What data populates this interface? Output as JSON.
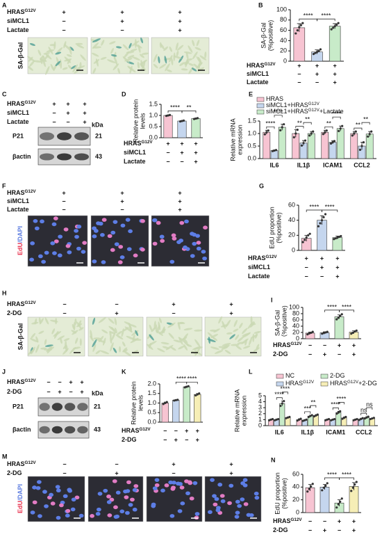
{
  "panels": {
    "A": {
      "letter": "A",
      "treatments": [
        {
          "label": "HRAS",
          "sup": "G12V",
          "marks": [
            "+",
            "+",
            "+"
          ]
        },
        {
          "label": "siMCL1",
          "marks": [
            "−",
            "+",
            "+"
          ]
        },
        {
          "label": "Lactate",
          "marks": [
            "−",
            "−",
            "+"
          ]
        }
      ],
      "image_label": "SA-β-Gal"
    },
    "C": {
      "letter": "C",
      "treatments": [
        {
          "label": "HRAS",
          "sup": "G12V",
          "marks": [
            "+",
            "+",
            "+"
          ]
        },
        {
          "label": "siMCL1",
          "marks": [
            "−",
            "+",
            "+"
          ]
        },
        {
          "label": "Lactate",
          "marks": [
            "−",
            "−",
            "+"
          ]
        }
      ],
      "unit": "kDa",
      "bands": [
        {
          "label": "P21",
          "size": 21
        },
        {
          "label": "βactin",
          "size": 43
        }
      ]
    },
    "F": {
      "letter": "F",
      "treatments": [
        {
          "label": "HRAS",
          "sup": "G12V",
          "marks": [
            "+",
            "+",
            "+"
          ]
        },
        {
          "label": "siMCL1",
          "marks": [
            "−",
            "+",
            "+"
          ]
        },
        {
          "label": "Lactate",
          "marks": [
            "−",
            "−",
            "+"
          ]
        }
      ],
      "image_label": [
        {
          "text": "EdU",
          "color": "#e8334f"
        },
        {
          "text": "/DAPI",
          "color": "#5b7be0"
        }
      ]
    },
    "H": {
      "letter": "H",
      "treatments": [
        {
          "label": "HRAS",
          "sup": "G12V",
          "marks": [
            "−",
            "−",
            "+",
            "+"
          ]
        },
        {
          "label": "2-DG",
          "marks": [
            "−",
            "+",
            "−",
            "+"
          ]
        }
      ],
      "image_label": "SA-β-Gal"
    },
    "J": {
      "letter": "J",
      "treatments": [
        {
          "label": "HRAS",
          "sup": "G12V",
          "marks": [
            "−",
            "−",
            "+",
            "+"
          ]
        },
        {
          "label": "2-DG",
          "marks": [
            "−",
            "+",
            "−",
            "+"
          ]
        }
      ],
      "unit": "kDa",
      "bands": [
        {
          "label": "P21",
          "size": 21
        },
        {
          "label": "βactin",
          "size": 43
        }
      ]
    },
    "M": {
      "letter": "M",
      "treatments": [
        {
          "label": "HRAS",
          "sup": "G12V",
          "marks": [
            "−",
            "−",
            "+",
            "+"
          ]
        },
        {
          "label": "2-DG",
          "marks": [
            "−",
            "+",
            "−",
            "+"
          ]
        }
      ],
      "image_label": [
        {
          "text": "EdU",
          "color": "#e8334f"
        },
        {
          "text": "/DAPI",
          "color": "#5b7be0"
        }
      ]
    }
  },
  "chart_data": [
    {
      "letter": "B",
      "type": "bar",
      "ylabel": [
        "SA-β-Gal",
        "(%positive)"
      ],
      "values": [
        65,
        18,
        68
      ],
      "errors": [
        8,
        4,
        5
      ],
      "points": [
        [
          54,
          60,
          66,
          70,
          74
        ],
        [
          14,
          16,
          18,
          20,
          23
        ],
        [
          62,
          65,
          68,
          71,
          74
        ]
      ],
      "colors": [
        "#f7c4d2",
        "#c5d6ee",
        "#c8ebc9"
      ],
      "ylim": [
        0,
        100
      ],
      "yticks": [
        0,
        20,
        40,
        60,
        80,
        100
      ],
      "significance": [
        "****",
        "****"
      ],
      "treatments": [
        {
          "label": "HRAS",
          "sup": "G12V",
          "marks": [
            "+",
            "+",
            "+"
          ]
        },
        {
          "label": "siMCL1",
          "marks": [
            "−",
            "+",
            "+"
          ]
        },
        {
          "label": "Lactate",
          "marks": [
            "−",
            "−",
            "+"
          ]
        }
      ]
    },
    {
      "letter": "D",
      "type": "bar",
      "ylabel": [
        "Relative protein",
        "levels"
      ],
      "values": [
        1,
        0.75,
        0.86
      ],
      "errors": [
        0.02,
        0.02,
        0.02
      ],
      "points": [
        [
          0.98,
          1,
          1.02
        ],
        [
          0.73,
          0.75,
          0.77
        ],
        [
          0.84,
          0.86,
          0.88
        ]
      ],
      "colors": [
        "#f7c4d2",
        "#c5d6ee",
        "#c8ebc9"
      ],
      "ylim": [
        0,
        1.5
      ],
      "yticks": [
        {
          "value": 0,
          "label": "0.0"
        },
        {
          "value": 0.5,
          "label": "0.5"
        },
        {
          "value": 1,
          "label": "1.0"
        },
        {
          "value": 1.5,
          "label": "1.5"
        }
      ],
      "significance": [
        "****",
        "**"
      ],
      "treatments": [
        {
          "label": "HRAS",
          "sup": "G12V",
          "marks": [
            "+",
            "+",
            "+"
          ]
        },
        {
          "label": "siMCL1",
          "marks": [
            "−",
            "+",
            "+"
          ]
        },
        {
          "label": "Lactate",
          "marks": [
            "−",
            "−",
            "+"
          ]
        }
      ]
    },
    {
      "letter": "E",
      "type": "grouped-bar",
      "ylabel": [
        "Relative mRNA",
        "expression"
      ],
      "categories": [
        "IL6",
        "IL1β",
        "ICAM1",
        "CCL2"
      ],
      "series": [
        {
          "name": "HRAS",
          "color": "#f7c4d2",
          "values": [
            1.05,
            1,
            1.05,
            1
          ],
          "errors": [
            0.08,
            0.15,
            0.08,
            0.08
          ],
          "points": [
            [
              0.97,
              1.05,
              1.12
            ],
            [
              0.85,
              1,
              1.15
            ],
            [
              0.98,
              1.05,
              1.12
            ],
            [
              0.92,
              1,
              1.08
            ]
          ]
        },
        {
          "name": "siMCL1+HRAS",
          "sup": "G12V",
          "color": "#c5d6ee",
          "values": [
            0.32,
            0.62,
            0.65,
            0.5
          ],
          "errors": [
            0.02,
            0.1,
            0.06,
            0.15
          ],
          "points": [
            [
              0.3,
              0.32,
              0.34
            ],
            [
              0.52,
              0.62,
              0.72
            ],
            [
              0.6,
              0.65,
              0.7
            ],
            [
              0.35,
              0.5,
              0.65
            ]
          ]
        },
        {
          "name": "siMCL1+HRAS",
          "sup": "G12V",
          "suffix": "+Lactate",
          "color": "#c8ebc9",
          "values": [
            1.25,
            1,
            1.2,
            0.98
          ],
          "errors": [
            0.12,
            0.08,
            0.1,
            0.1
          ],
          "points": [
            [
              1.13,
              1.25,
              1.37
            ],
            [
              0.92,
              1,
              1.08
            ],
            [
              1.1,
              1.2,
              1.3
            ],
            [
              0.88,
              0.98,
              1.08
            ]
          ]
        }
      ],
      "ylim": [
        0,
        1.5
      ],
      "yticks": [
        {
          "value": 0,
          "label": "0.0"
        },
        {
          "value": 0.5,
          "label": "0.5"
        },
        {
          "value": 1,
          "label": "1.0"
        },
        {
          "value": 1.5,
          "label": "1.5"
        }
      ],
      "significance": [
        [
          "****",
          "****"
        ],
        [
          "**",
          "**"
        ],
        [
          "**",
          "****"
        ],
        [
          "**",
          "**"
        ]
      ]
    },
    {
      "letter": "G",
      "type": "bar",
      "ylabel": [
        "EdU proportion",
        "(%positive)"
      ],
      "values": [
        16,
        40,
        17
      ],
      "errors": [
        4,
        6,
        2
      ],
      "points": [
        [
          11,
          14,
          17,
          20,
          22
        ],
        [
          32,
          36,
          40,
          44,
          48
        ],
        [
          15,
          16,
          17,
          18,
          19
        ]
      ],
      "colors": [
        "#f7c4d2",
        "#c5d6ee",
        "#c8ebc9"
      ],
      "ylim": [
        0,
        60
      ],
      "yticks": [
        0,
        20,
        40,
        60
      ],
      "significance": [
        "****",
        "****"
      ],
      "treatments": [
        {
          "label": "HRAS",
          "sup": "G12V",
          "marks": [
            "+",
            "+",
            "+"
          ]
        },
        {
          "label": "siMCL1",
          "marks": [
            "−",
            "+",
            "+"
          ]
        },
        {
          "label": "Lactate",
          "marks": [
            "−",
            "−",
            "+"
          ]
        }
      ]
    },
    {
      "letter": "I",
      "type": "bar",
      "ylabel": [
        "SA-β-Gal",
        "（%positive)"
      ],
      "values": [
        18,
        19,
        70,
        21
      ],
      "errors": [
        3,
        3,
        6,
        4
      ],
      "points": [
        [
          14,
          17,
          19,
          22
        ],
        [
          16,
          18,
          20,
          22
        ],
        [
          62,
          67,
          73,
          78
        ],
        [
          16,
          19,
          23,
          26
        ]
      ],
      "colors": [
        "#f7c4d2",
        "#c5d6ee",
        "#c8ebc9",
        "#f6eeb6"
      ],
      "ylim": [
        0,
        100
      ],
      "yticks": [
        0,
        20,
        40,
        60,
        80,
        100
      ],
      "significance": [
        "****",
        "****"
      ],
      "treatments": [
        {
          "label": "HRAS",
          "sup": "G12V",
          "marks": [
            "−",
            "−",
            "+",
            "+"
          ]
        },
        {
          "label": "2-DG",
          "marks": [
            "−",
            "+",
            "−",
            "+"
          ]
        }
      ]
    },
    {
      "letter": "K",
      "type": "bar",
      "ylabel": [
        "Relative protein",
        "levels"
      ],
      "values": [
        1,
        1.15,
        1.85,
        1.45
      ],
      "errors": [
        0.05,
        0.02,
        0.03,
        0.05
      ],
      "points": [
        [
          0.95,
          1,
          1.05
        ],
        [
          1.13,
          1.15,
          1.17
        ],
        [
          1.82,
          1.85,
          1.88
        ],
        [
          1.4,
          1.45,
          1.5
        ]
      ],
      "colors": [
        "#f7c4d2",
        "#c5d6ee",
        "#c8ebc9",
        "#f6eeb6"
      ],
      "ylim": [
        0,
        2
      ],
      "yticks": [
        {
          "value": 0,
          "label": "0.0"
        },
        {
          "value": 0.5,
          "label": "0.5"
        },
        {
          "value": 1,
          "label": "1.0"
        },
        {
          "value": 1.5,
          "label": "1.5"
        },
        {
          "value": 2,
          "label": "2.0"
        }
      ],
      "significance": [
        "****",
        "****"
      ],
      "treatments": [
        {
          "label": "HRAS",
          "sup": "G12V",
          "marks": [
            "−",
            "−",
            "+",
            "+"
          ]
        },
        {
          "label": "2-DG",
          "marks": [
            "−",
            "+",
            "−",
            "+"
          ]
        }
      ]
    },
    {
      "letter": "L",
      "type": "grouped-bar",
      "ylabel": [
        "Relative mRNA",
        "expression"
      ],
      "categories": [
        "IL6",
        "IL1β",
        "ICAM1",
        "CCL2"
      ],
      "series": [
        {
          "name": "NC",
          "color": "#f7c4d2",
          "values": [
            1,
            1,
            1,
            1
          ],
          "errors": [
            0.1,
            0.15,
            0.1,
            0.1
          ],
          "points": [
            [
              0.9,
              1,
              1.1
            ],
            [
              0.85,
              1,
              1.15
            ],
            [
              0.9,
              1,
              1.1
            ],
            [
              0.9,
              1,
              1.1
            ]
          ]
        },
        {
          "name": "HRAS",
          "sup": "G12V",
          "color": "#c5d6ee",
          "values": [
            1,
            0.9,
            1,
            1.1
          ],
          "errors": [
            0.1,
            0.1,
            0.1,
            0.15
          ],
          "points": [
            [
              0.9,
              1,
              1.1
            ],
            [
              0.8,
              0.9,
              1
            ],
            [
              0.9,
              1,
              1.1
            ],
            [
              0.95,
              1.1,
              1.25
            ]
          ]
        },
        {
          "name": "2-DG",
          "color": "#c8ebc9",
          "values": [
            3.7,
            1.6,
            2.2,
            1.35
          ],
          "errors": [
            0.4,
            0.15,
            0.2,
            0.15
          ],
          "points": [
            [
              3.3,
              3.7,
              4.1
            ],
            [
              1.45,
              1.6,
              1.75
            ],
            [
              2,
              2.2,
              2.4
            ],
            [
              1.2,
              1.35,
              1.5
            ]
          ]
        },
        {
          "name": "HRAS",
          "sup": "G12V",
          "suffix": "+2-DG",
          "color": "#f6eeb6",
          "values": [
            1.35,
            1.7,
            1.3,
            1.2
          ],
          "errors": [
            0.1,
            0.15,
            0.15,
            0.1
          ],
          "points": [
            [
              1.25,
              1.35,
              1.45
            ],
            [
              1.55,
              1.7,
              1.85
            ],
            [
              1.15,
              1.3,
              1.45
            ],
            [
              1.1,
              1.2,
              1.3
            ]
          ]
        }
      ],
      "ylim": [
        0,
        5
      ],
      "yticks": [
        0,
        1,
        2,
        3,
        4,
        5
      ],
      "significance": [
        [
          "****",
          "****"
        ],
        [
          "***",
          "**"
        ],
        [
          "****",
          "****"
        ],
        [
          "ns",
          "ns"
        ]
      ]
    },
    {
      "letter": "N",
      "type": "bar",
      "ylabel": [
        "EdU proportion",
        "(%positive)"
      ],
      "values": [
        39,
        40,
        15,
        41
      ],
      "errors": [
        5,
        4,
        5,
        6
      ],
      "points": [
        [
          33,
          37,
          41,
          45
        ],
        [
          35,
          39,
          42,
          46
        ],
        [
          8,
          13,
          17,
          22
        ],
        [
          34,
          39,
          44,
          48
        ]
      ],
      "colors": [
        "#f7c4d2",
        "#c5d6ee",
        "#c8ebc9",
        "#f6eeb6"
      ],
      "ylim": [
        0,
        60
      ],
      "yticks": [
        0,
        20,
        40,
        60
      ],
      "significance": [
        "****",
        "****"
      ],
      "treatments": [
        {
          "label": "HRAS",
          "sup": "G12V",
          "marks": [
            "−",
            "−",
            "+",
            "+"
          ]
        },
        {
          "label": "2-DG",
          "marks": [
            "−",
            "+",
            "−",
            "+"
          ]
        }
      ]
    }
  ]
}
